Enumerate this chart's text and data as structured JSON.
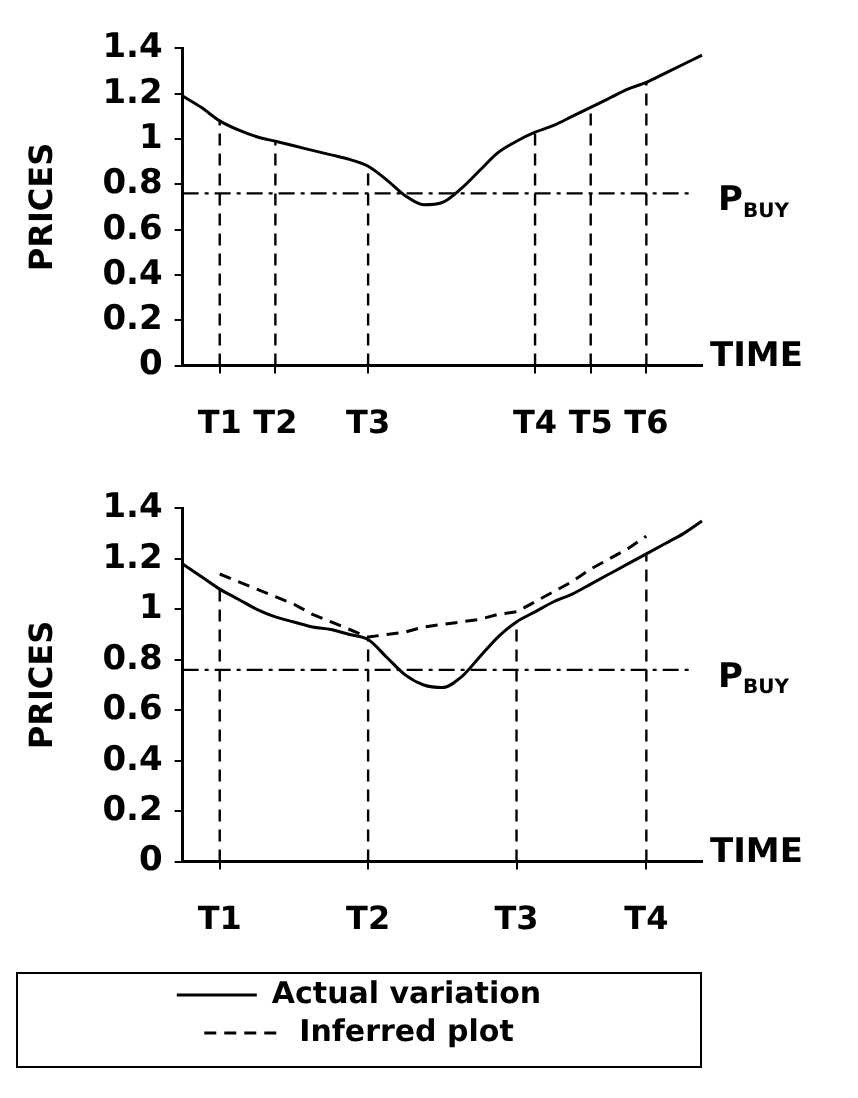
{
  "chart_data": [
    {
      "type": "line",
      "ylabel": "PRICES",
      "xlabel": "TIME",
      "ylim": [
        0,
        1.4
      ],
      "categories": [
        null,
        null,
        "T1",
        null,
        null,
        "T2",
        null,
        null,
        null,
        null,
        "T3",
        null,
        null,
        null,
        null,
        null,
        null,
        null,
        null,
        "T4",
        null,
        null,
        "T5",
        null,
        null,
        "T6",
        null,
        null,
        null
      ],
      "yticks": [
        0,
        0.2,
        0.4,
        0.6,
        0.8,
        1,
        1.2,
        1.4
      ],
      "grid": false,
      "legend": false,
      "marker": "none",
      "series": [
        {
          "color": "#000000",
          "line_style": "solid",
          "values": [
            1.19,
            1.14,
            1.08,
            1.04,
            1.01,
            0.99,
            0.97,
            0.95,
            0.93,
            0.91,
            0.88,
            0.82,
            0.75,
            0.71,
            0.72,
            0.78,
            0.86,
            0.94,
            0.99,
            1.03,
            1.06,
            1.1,
            1.14,
            1.18,
            1.22,
            1.25,
            1.29,
            1.33,
            1.37
          ]
        }
      ],
      "ref_lines": [
        {
          "axis": "y",
          "value": 0.76,
          "label": "P$_{BUY}$",
          "line_style": "dashdot"
        },
        {
          "axis": "x",
          "value": "T1",
          "line_style": "dashed"
        },
        {
          "axis": "x",
          "value": "T2",
          "line_style": "dashed"
        },
        {
          "axis": "x",
          "value": "T3",
          "line_style": "dashed"
        },
        {
          "axis": "x",
          "value": "T4",
          "line_style": "dashed"
        },
        {
          "axis": "x",
          "value": "T5",
          "line_style": "dashed"
        },
        {
          "axis": "x",
          "value": "T6",
          "line_style": "dashed"
        }
      ]
    },
    {
      "type": "line",
      "ylabel": "PRICES",
      "xlabel": "TIME",
      "ylim": [
        0,
        1.4
      ],
      "categories": [
        null,
        null,
        "T1",
        null,
        null,
        null,
        null,
        null,
        null,
        null,
        "T2",
        null,
        null,
        null,
        null,
        null,
        null,
        null,
        "T3",
        null,
        null,
        null,
        null,
        null,
        null,
        "T4",
        null,
        null,
        null
      ],
      "yticks": [
        0,
        0.2,
        0.4,
        0.6,
        0.8,
        1,
        1.2,
        1.4
      ],
      "grid": false,
      "legend": "bottom",
      "marker": "none",
      "series": [
        {
          "name": "Actual variation",
          "color": "#000000",
          "line_style": "solid",
          "values": [
            1.18,
            1.13,
            1.08,
            1.04,
            1.0,
            0.97,
            0.95,
            0.93,
            0.92,
            0.9,
            0.88,
            0.81,
            0.74,
            0.7,
            0.69,
            0.73,
            0.81,
            0.89,
            0.95,
            0.99,
            1.03,
            1.06,
            1.1,
            1.14,
            1.18,
            1.22,
            1.26,
            1.3,
            1.35
          ]
        },
        {
          "name": "Inferred plot",
          "color": "#000000",
          "line_style": "dashed",
          "values": [
            null,
            null,
            1.14,
            1.11,
            1.08,
            1.05,
            1.02,
            0.98,
            0.95,
            0.92,
            0.89,
            0.9,
            0.91,
            0.93,
            0.94,
            0.95,
            0.96,
            0.98,
            0.99,
            1.03,
            1.07,
            1.11,
            1.16,
            1.2,
            1.24,
            1.29,
            null,
            null,
            null
          ]
        }
      ],
      "ref_lines": [
        {
          "axis": "y",
          "value": 0.76,
          "label": "P$_{BUY}$",
          "line_style": "dashdot"
        },
        {
          "axis": "x",
          "value": "T1",
          "line_style": "dashed"
        },
        {
          "axis": "x",
          "value": "T2",
          "line_style": "dashed"
        },
        {
          "axis": "x",
          "value": "T3",
          "line_style": "dashed"
        },
        {
          "axis": "x",
          "value": "T4",
          "line_style": "dashed"
        }
      ]
    }
  ]
}
